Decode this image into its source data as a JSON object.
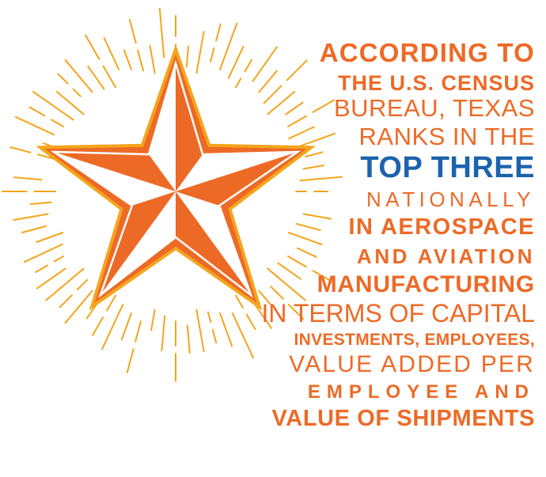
{
  "colors": {
    "orange": "#ed6a26",
    "blue": "#1b63ad",
    "gold": "#f4a51c",
    "white": "#ffffff"
  },
  "art": {
    "icon": "texas-star-icon",
    "rays": "sunburst-rays"
  },
  "text_lines": [
    {
      "text": "According to",
      "color": "orange"
    },
    {
      "text": "the U.S. Census",
      "color": "orange"
    },
    {
      "text": "Bureau, Texas",
      "color": "orange"
    },
    {
      "text": "ranks in the",
      "color": "orange"
    },
    {
      "text": "top three",
      "color": "blue"
    },
    {
      "text": "nationally",
      "color": "orange"
    },
    {
      "text": "in aerospace",
      "color": "orange"
    },
    {
      "text": "and aviation",
      "color": "orange"
    },
    {
      "text": "manufacturing",
      "color": "orange"
    },
    {
      "text": "in terms of capital",
      "color": "orange"
    },
    {
      "text": "investments, employees,",
      "color": "orange"
    },
    {
      "text": "value added per",
      "color": "orange"
    },
    {
      "text": "employee and",
      "color": "orange"
    },
    {
      "text": "value of shipments",
      "color": "orange"
    }
  ]
}
